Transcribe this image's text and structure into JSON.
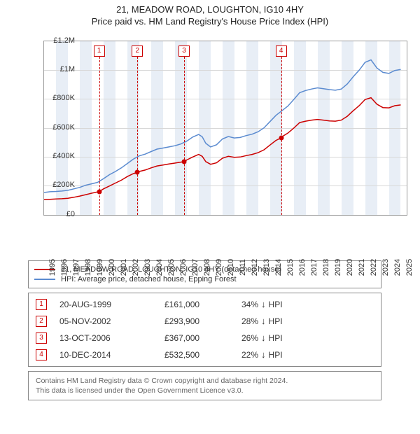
{
  "title": "21, MEADOW ROAD, LOUGHTON, IG10 4HY",
  "subtitle": "Price paid vs. HM Land Registry's House Price Index (HPI)",
  "chart": {
    "type": "line",
    "background_color": "#ffffff",
    "grid_color": "#d8d8d8",
    "border_color": "#999999",
    "band_color": "#e8eef6",
    "x_years": [
      1995,
      1996,
      1997,
      1998,
      1999,
      2000,
      2001,
      2002,
      2003,
      2004,
      2005,
      2006,
      2007,
      2008,
      2009,
      2010,
      2011,
      2012,
      2013,
      2014,
      2015,
      2016,
      2017,
      2018,
      2019,
      2020,
      2021,
      2022,
      2023,
      2024,
      2025
    ],
    "x_range": [
      1995,
      2025.5
    ],
    "ylim": [
      0,
      1200000
    ],
    "ytick_labels": [
      "£0",
      "£200K",
      "£400K",
      "£600K",
      "£800K",
      "£1M",
      "£1.2M"
    ],
    "ytick_values": [
      0,
      200000,
      400000,
      600000,
      800000,
      1000000,
      1200000
    ],
    "label_fontsize": 11,
    "series_red": {
      "label": "21, MEADOW ROAD, LOUGHTON, IG10 4HY (detached house)",
      "color": "#cc0000",
      "line_width": 1.5,
      "points": [
        [
          1995.0,
          105000
        ],
        [
          1995.5,
          108000
        ],
        [
          1996.0,
          110000
        ],
        [
          1996.5,
          112000
        ],
        [
          1997.0,
          115000
        ],
        [
          1997.5,
          122000
        ],
        [
          1998.0,
          130000
        ],
        [
          1998.5,
          140000
        ],
        [
          1999.0,
          150000
        ],
        [
          1999.63,
          161000
        ],
        [
          2000.0,
          180000
        ],
        [
          2000.5,
          200000
        ],
        [
          2001.0,
          220000
        ],
        [
          2001.5,
          240000
        ],
        [
          2002.0,
          265000
        ],
        [
          2002.5,
          285000
        ],
        [
          2002.85,
          293900
        ],
        [
          2003.0,
          300000
        ],
        [
          2003.5,
          310000
        ],
        [
          2004.0,
          325000
        ],
        [
          2004.5,
          338000
        ],
        [
          2005.0,
          345000
        ],
        [
          2005.5,
          352000
        ],
        [
          2006.0,
          358000
        ],
        [
          2006.5,
          365000
        ],
        [
          2006.78,
          367000
        ],
        [
          2007.0,
          380000
        ],
        [
          2007.5,
          400000
        ],
        [
          2008.0,
          418000
        ],
        [
          2008.3,
          405000
        ],
        [
          2008.6,
          368000
        ],
        [
          2009.0,
          350000
        ],
        [
          2009.5,
          360000
        ],
        [
          2010.0,
          392000
        ],
        [
          2010.5,
          405000
        ],
        [
          2011.0,
          398000
        ],
        [
          2011.5,
          400000
        ],
        [
          2012.0,
          410000
        ],
        [
          2012.5,
          418000
        ],
        [
          2013.0,
          430000
        ],
        [
          2013.5,
          450000
        ],
        [
          2014.0,
          483000
        ],
        [
          2014.5,
          515000
        ],
        [
          2014.94,
          532500
        ],
        [
          2015.0,
          540000
        ],
        [
          2015.5,
          565000
        ],
        [
          2016.0,
          600000
        ],
        [
          2016.5,
          638000
        ],
        [
          2017.0,
          648000
        ],
        [
          2017.5,
          655000
        ],
        [
          2018.0,
          660000
        ],
        [
          2018.5,
          655000
        ],
        [
          2019.0,
          650000
        ],
        [
          2019.5,
          648000
        ],
        [
          2020.0,
          655000
        ],
        [
          2020.5,
          682000
        ],
        [
          2021.0,
          720000
        ],
        [
          2021.5,
          755000
        ],
        [
          2022.0,
          798000
        ],
        [
          2022.5,
          810000
        ],
        [
          2023.0,
          765000
        ],
        [
          2023.5,
          742000
        ],
        [
          2024.0,
          740000
        ],
        [
          2024.5,
          755000
        ],
        [
          2025.0,
          760000
        ]
      ]
    },
    "series_blue": {
      "label": "HPI: Average price, detached house, Epping Forest",
      "color": "#5b8bd0",
      "line_width": 1.5,
      "points": [
        [
          1995.0,
          155000
        ],
        [
          1995.5,
          160000
        ],
        [
          1996.0,
          162000
        ],
        [
          1996.5,
          165000
        ],
        [
          1997.0,
          170000
        ],
        [
          1997.5,
          180000
        ],
        [
          1998.0,
          190000
        ],
        [
          1998.5,
          205000
        ],
        [
          1999.0,
          215000
        ],
        [
          1999.5,
          225000
        ],
        [
          2000.0,
          250000
        ],
        [
          2000.5,
          278000
        ],
        [
          2001.0,
          300000
        ],
        [
          2001.5,
          325000
        ],
        [
          2002.0,
          355000
        ],
        [
          2002.5,
          385000
        ],
        [
          2003.0,
          408000
        ],
        [
          2003.5,
          420000
        ],
        [
          2004.0,
          438000
        ],
        [
          2004.5,
          455000
        ],
        [
          2005.0,
          462000
        ],
        [
          2005.5,
          470000
        ],
        [
          2006.0,
          478000
        ],
        [
          2006.5,
          490000
        ],
        [
          2007.0,
          510000
        ],
        [
          2007.5,
          538000
        ],
        [
          2008.0,
          556000
        ],
        [
          2008.3,
          540000
        ],
        [
          2008.6,
          495000
        ],
        [
          2009.0,
          470000
        ],
        [
          2009.5,
          485000
        ],
        [
          2010.0,
          525000
        ],
        [
          2010.5,
          542000
        ],
        [
          2011.0,
          532000
        ],
        [
          2011.5,
          535000
        ],
        [
          2012.0,
          548000
        ],
        [
          2012.5,
          558000
        ],
        [
          2013.0,
          575000
        ],
        [
          2013.5,
          602000
        ],
        [
          2014.0,
          645000
        ],
        [
          2014.5,
          688000
        ],
        [
          2015.0,
          720000
        ],
        [
          2015.5,
          752000
        ],
        [
          2016.0,
          798000
        ],
        [
          2016.5,
          845000
        ],
        [
          2017.0,
          860000
        ],
        [
          2017.5,
          870000
        ],
        [
          2018.0,
          878000
        ],
        [
          2018.5,
          872000
        ],
        [
          2019.0,
          866000
        ],
        [
          2019.5,
          862000
        ],
        [
          2020.0,
          870000
        ],
        [
          2020.5,
          905000
        ],
        [
          2021.0,
          955000
        ],
        [
          2021.5,
          1000000
        ],
        [
          2022.0,
          1055000
        ],
        [
          2022.5,
          1072000
        ],
        [
          2023.0,
          1015000
        ],
        [
          2023.5,
          985000
        ],
        [
          2024.0,
          978000
        ],
        [
          2024.5,
          998000
        ],
        [
          2025.0,
          1005000
        ]
      ]
    },
    "markers": [
      {
        "n": "1",
        "x": 1999.63,
        "y": 161000
      },
      {
        "n": "2",
        "x": 2002.85,
        "y": 293900
      },
      {
        "n": "3",
        "x": 2006.78,
        "y": 367000
      },
      {
        "n": "4",
        "x": 2014.94,
        "y": 532500
      }
    ]
  },
  "legend": {
    "border_color": "#888888"
  },
  "transactions": [
    {
      "n": "1",
      "date": "20-AUG-1999",
      "price": "£161,000",
      "diff": "34%",
      "suffix": "HPI"
    },
    {
      "n": "2",
      "date": "05-NOV-2002",
      "price": "£293,900",
      "diff": "28%",
      "suffix": "HPI"
    },
    {
      "n": "3",
      "date": "13-OCT-2006",
      "price": "£367,000",
      "diff": "26%",
      "suffix": "HPI"
    },
    {
      "n": "4",
      "date": "10-DEC-2014",
      "price": "£532,500",
      "diff": "22%",
      "suffix": "HPI"
    }
  ],
  "footer": {
    "line1": "Contains HM Land Registry data © Crown copyright and database right 2024.",
    "line2": "This data is licensed under the Open Government Licence v3.0."
  }
}
